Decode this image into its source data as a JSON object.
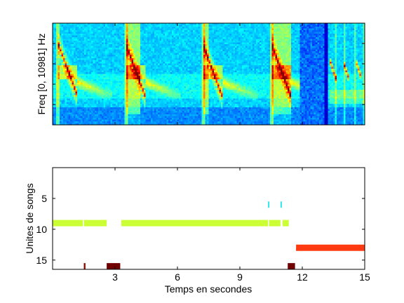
{
  "chart_data": [
    {
      "type": "heatmap",
      "title": "",
      "xlabel": "",
      "ylabel": "Freq [0, 10981] Hz",
      "xlim": [
        0,
        15
      ],
      "ylim": [
        0,
        10981
      ],
      "colormap": "jet",
      "grid": false,
      "song_onsets_s": [
        0.25,
        3.5,
        7.2,
        10.5
      ],
      "final_segment_start_s": 13.3,
      "bands": [
        {
          "t0": 0.25,
          "t1": 1.4
        },
        {
          "t0": 3.5,
          "t1": 4.9
        },
        {
          "t0": 7.2,
          "t1": 8.4
        },
        {
          "t0": 10.5,
          "t1": 11.6
        },
        {
          "t0": 13.4,
          "t1": 15.0
        }
      ],
      "loud_noise_segment": {
        "t0": 11.8,
        "t1": 13.2
      }
    },
    {
      "type": "scatter",
      "title": "",
      "xlabel": "Temps en secondes",
      "ylabel": "Unites de songs",
      "xlim": [
        0,
        15
      ],
      "ylim": [
        0,
        16.5
      ],
      "y_reversed": true,
      "x_ticks": [
        "3",
        "6",
        "9",
        "12",
        "15"
      ],
      "y_ticks": [
        "5",
        "10",
        "15"
      ],
      "grid": false,
      "segments": [
        {
          "unit": 6,
          "t0": 10.35,
          "t1": 10.42,
          "color": "#33e8e8"
        },
        {
          "unit": 6,
          "t0": 10.95,
          "t1": 11.02,
          "color": "#33e8e8"
        },
        {
          "unit": 9,
          "t0": 0.0,
          "t1": 1.45,
          "color": "#ccff33"
        },
        {
          "unit": 9,
          "t0": 1.5,
          "t1": 2.6,
          "color": "#ccff33"
        },
        {
          "unit": 9,
          "t0": 3.3,
          "t1": 10.35,
          "color": "#ccff33"
        },
        {
          "unit": 9,
          "t0": 10.4,
          "t1": 10.95,
          "color": "#ccff33"
        },
        {
          "unit": 9,
          "t0": 11.05,
          "t1": 11.35,
          "color": "#ccff33"
        },
        {
          "unit": 13,
          "t0": 11.7,
          "t1": 15.0,
          "color": "#ff3a10"
        },
        {
          "unit": 16,
          "t0": 1.5,
          "t1": 1.58,
          "color": "#8b0a00"
        },
        {
          "unit": 16,
          "t0": 2.6,
          "t1": 3.25,
          "color": "#700000"
        },
        {
          "unit": 16,
          "t0": 11.3,
          "t1": 11.65,
          "color": "#700000"
        }
      ]
    }
  ]
}
